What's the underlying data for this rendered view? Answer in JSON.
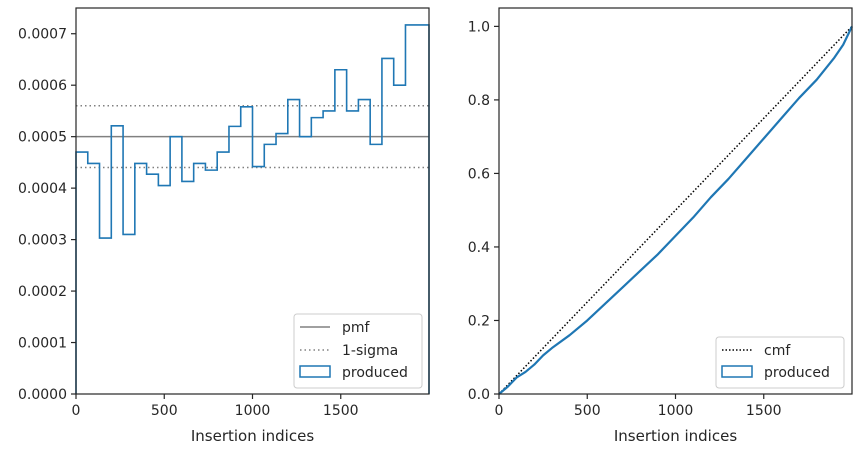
{
  "chart_data": [
    {
      "type": "line",
      "subtype": "step-histogram",
      "title": "",
      "xlabel": "Insertion indices",
      "ylabel": "",
      "xlim": [
        0,
        2000
      ],
      "ylim": [
        0,
        0.00075
      ],
      "xticks": [
        0,
        500,
        1000,
        1500
      ],
      "yticks": [
        0,
        0.0001,
        0.0002,
        0.0003,
        0.0004,
        0.0005,
        0.0006,
        0.0007
      ],
      "ytick_labels": [
        "0.0000",
        "0.0001",
        "0.0002",
        "0.0003",
        "0.0004",
        "0.0005",
        "0.0006",
        "0.0007"
      ],
      "grid": false,
      "legend_position": "lower-right",
      "bin_edges": [
        0,
        66.7,
        133.3,
        200,
        266.7,
        333.3,
        400,
        466.7,
        533.3,
        600,
        666.7,
        733.3,
        800,
        866.7,
        933.3,
        1000,
        1066.7,
        1133.3,
        1200,
        1266.7,
        1333.3,
        1400,
        1466.7,
        1533.3,
        1600,
        1666.7,
        1733.3,
        1800,
        1866.7,
        1933.3,
        2000
      ],
      "series": [
        {
          "name": "produced",
          "style": "step",
          "color": "#1f77b4",
          "values": [
            0.00047,
            0.000448,
            0.000303,
            0.000521,
            0.00031,
            0.000448,
            0.000427,
            0.000405,
            0.0005,
            0.000413,
            0.000448,
            0.000435,
            0.00047,
            0.00052,
            0.000558,
            0.000442,
            0.000485,
            0.000506,
            0.000572,
            0.0005,
            0.000537,
            0.00055,
            0.00063,
            0.00055,
            0.000572,
            0.000485,
            0.000652,
            0.0006,
            0.000717,
            0.000717
          ]
        },
        {
          "name": "pmf",
          "style": "hline",
          "color": "#808080",
          "value": 0.0005
        },
        {
          "name": "1-sigma",
          "style": "hline-dotted",
          "color": "#808080",
          "values": [
            0.00056,
            0.00044
          ]
        }
      ],
      "legend": [
        "pmf",
        "1-sigma",
        "produced"
      ]
    },
    {
      "type": "line",
      "title": "",
      "xlabel": "Insertion indices",
      "ylabel": "",
      "xlim": [
        0,
        2000
      ],
      "ylim": [
        0,
        1.05
      ],
      "xticks": [
        0,
        500,
        1000,
        1500
      ],
      "yticks": [
        0,
        0.2,
        0.4,
        0.6,
        0.8,
        1.0
      ],
      "ytick_labels": [
        "0.0",
        "0.2",
        "0.4",
        "0.6",
        "0.8",
        "1.0"
      ],
      "grid": false,
      "legend_position": "lower-right",
      "series": [
        {
          "name": "cmf",
          "style": "dotted",
          "color": "#000000",
          "x": [
            0,
            2000
          ],
          "y": [
            0,
            1.0
          ]
        },
        {
          "name": "produced",
          "style": "solid",
          "color": "#1f77b4",
          "x": [
            0,
            50,
            100,
            150,
            200,
            250,
            300,
            400,
            500,
            600,
            700,
            800,
            900,
            1000,
            1100,
            1200,
            1300,
            1400,
            1500,
            1600,
            1700,
            1800,
            1900,
            1950,
            2000
          ],
          "y": [
            0,
            0.02,
            0.045,
            0.06,
            0.08,
            0.105,
            0.125,
            0.16,
            0.2,
            0.245,
            0.29,
            0.335,
            0.38,
            0.43,
            0.48,
            0.535,
            0.585,
            0.64,
            0.695,
            0.75,
            0.805,
            0.855,
            0.915,
            0.95,
            1.0
          ]
        }
      ],
      "legend": [
        "cmf",
        "produced"
      ]
    }
  ]
}
